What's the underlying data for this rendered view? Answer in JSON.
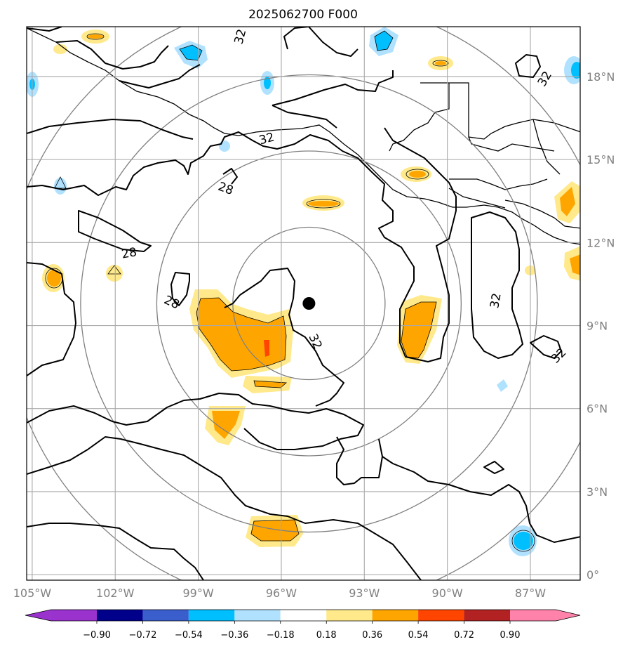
{
  "title": "2025062700 F000",
  "lon_ticks": [
    {
      "value": -105,
      "label": "105°W"
    },
    {
      "value": -102,
      "label": "102°W"
    },
    {
      "value": -99,
      "label": "99°W"
    },
    {
      "value": -96,
      "label": "96°W"
    },
    {
      "value": -93,
      "label": "93°W"
    },
    {
      "value": -90,
      "label": "90°W"
    },
    {
      "value": -87,
      "label": "87°W"
    }
  ],
  "lat_ticks": [
    {
      "value": 0,
      "label": "0°"
    },
    {
      "value": 3,
      "label": "3°N"
    },
    {
      "value": 6,
      "label": "6°N"
    },
    {
      "value": 9,
      "label": "9°N"
    },
    {
      "value": 12,
      "label": "12°N"
    },
    {
      "value": 15,
      "label": "15°N"
    },
    {
      "value": 18,
      "label": "18°N"
    }
  ],
  "extent": {
    "lon_min": -105.2,
    "lon_max": -85.2,
    "lat_min": -0.2,
    "lat_max": 19.8
  },
  "storm_center": {
    "lon": -95.0,
    "lat": 9.8
  },
  "range_ring_radii_deg": [
    2.75,
    5.5,
    8.25,
    11.0
  ],
  "contour_labels": [
    "32",
    "32",
    "28",
    "28",
    "28",
    "32",
    "32",
    "32",
    "32"
  ],
  "colorbar": {
    "ticks": [
      "−0.90",
      "−0.72",
      "−0.54",
      "−0.36",
      "−0.18",
      "0.18",
      "0.36",
      "0.54",
      "0.72",
      "0.90"
    ],
    "colors": [
      "#9a32cd",
      "#00008b",
      "#3a5fcd",
      "#00bfff",
      "#b0e2ff",
      "#ffffff",
      "#ffe98a",
      "#ffa500",
      "#ff4500",
      "#b22222",
      "#ff82ab"
    ]
  }
}
